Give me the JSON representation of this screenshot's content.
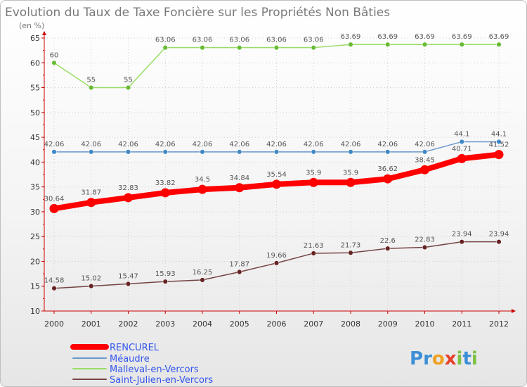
{
  "chart_data": {
    "type": "line",
    "title": "Evolution du Taux de Taxe Foncière sur les Propriétés Non Bâties",
    "subtitle": "(en %)",
    "xlabel": "",
    "ylabel": "(en %)",
    "categories": [
      "2000",
      "2001",
      "2002",
      "2003",
      "2004",
      "2005",
      "2006",
      "2007",
      "2008",
      "2009",
      "2010",
      "2011",
      "2012"
    ],
    "ylim": [
      10,
      65
    ],
    "yticks": [
      10,
      15,
      20,
      25,
      30,
      35,
      40,
      45,
      50,
      55,
      60,
      65
    ],
    "grid": true,
    "legend_position": "bottom-left",
    "series": [
      {
        "name": "RENCUREL",
        "color": "#ff0000",
        "emphasis": true,
        "values": [
          30.64,
          31.87,
          32.83,
          33.82,
          34.5,
          34.84,
          35.54,
          35.9,
          35.9,
          36.62,
          38.45,
          40.71,
          41.52
        ],
        "labels": [
          "30.64",
          "31.87",
          "32.83",
          "33.82",
          "34.5",
          "34.84",
          "35.54",
          "35.9",
          "35.9",
          "36.62",
          "38.45",
          "40.71",
          "41.52"
        ]
      },
      {
        "name": "Méaudre",
        "color": "#6699cc",
        "point_color": "#3f88c5",
        "emphasis": false,
        "values": [
          42.06,
          42.06,
          42.06,
          42.06,
          42.06,
          42.06,
          42.06,
          42.06,
          42.06,
          42.06,
          42.06,
          44.1,
          44.1
        ],
        "labels": [
          "42.06",
          "42.06",
          "42.06",
          "42.06",
          "42.06",
          "42.06",
          "42.06",
          "42.06",
          "42.06",
          "42.06",
          "42.06",
          "44.1",
          "44.1"
        ]
      },
      {
        "name": "Malleval-en-Vercors",
        "color": "#99dd66",
        "point_color": "#66bb33",
        "emphasis": false,
        "values": [
          60,
          55,
          55,
          63.06,
          63.06,
          63.06,
          63.06,
          63.06,
          63.69,
          63.69,
          63.69,
          63.69,
          63.69
        ],
        "labels": [
          "60",
          "55",
          "55",
          "63.06",
          "63.06",
          "63.06",
          "63.06",
          "63.06",
          "63.69",
          "63.69",
          "63.69",
          "63.69",
          "63.69"
        ]
      },
      {
        "name": "Saint-Julien-en-Vercors",
        "color": "#774444",
        "point_color": "#662222",
        "emphasis": false,
        "values": [
          14.58,
          15.02,
          15.47,
          15.93,
          16.25,
          17.87,
          19.66,
          21.63,
          21.73,
          22.6,
          22.83,
          23.94,
          23.94
        ],
        "labels": [
          "14.58",
          "15.02",
          "15.47",
          "15.93",
          "16.25",
          "17.87",
          "19.66",
          "21.63",
          "21.73",
          "22.6",
          "22.83",
          "23.94",
          "23.94"
        ]
      }
    ]
  },
  "logo": {
    "text": "Proxiti",
    "letters": [
      "P",
      "r",
      "o",
      "x",
      "i",
      "t",
      "i"
    ],
    "colors": [
      "#3b8fd6",
      "#3b8fd6",
      "#f0a020",
      "#e8402a",
      "#7cc243",
      "#3b8fd6",
      "#7cc243"
    ]
  }
}
